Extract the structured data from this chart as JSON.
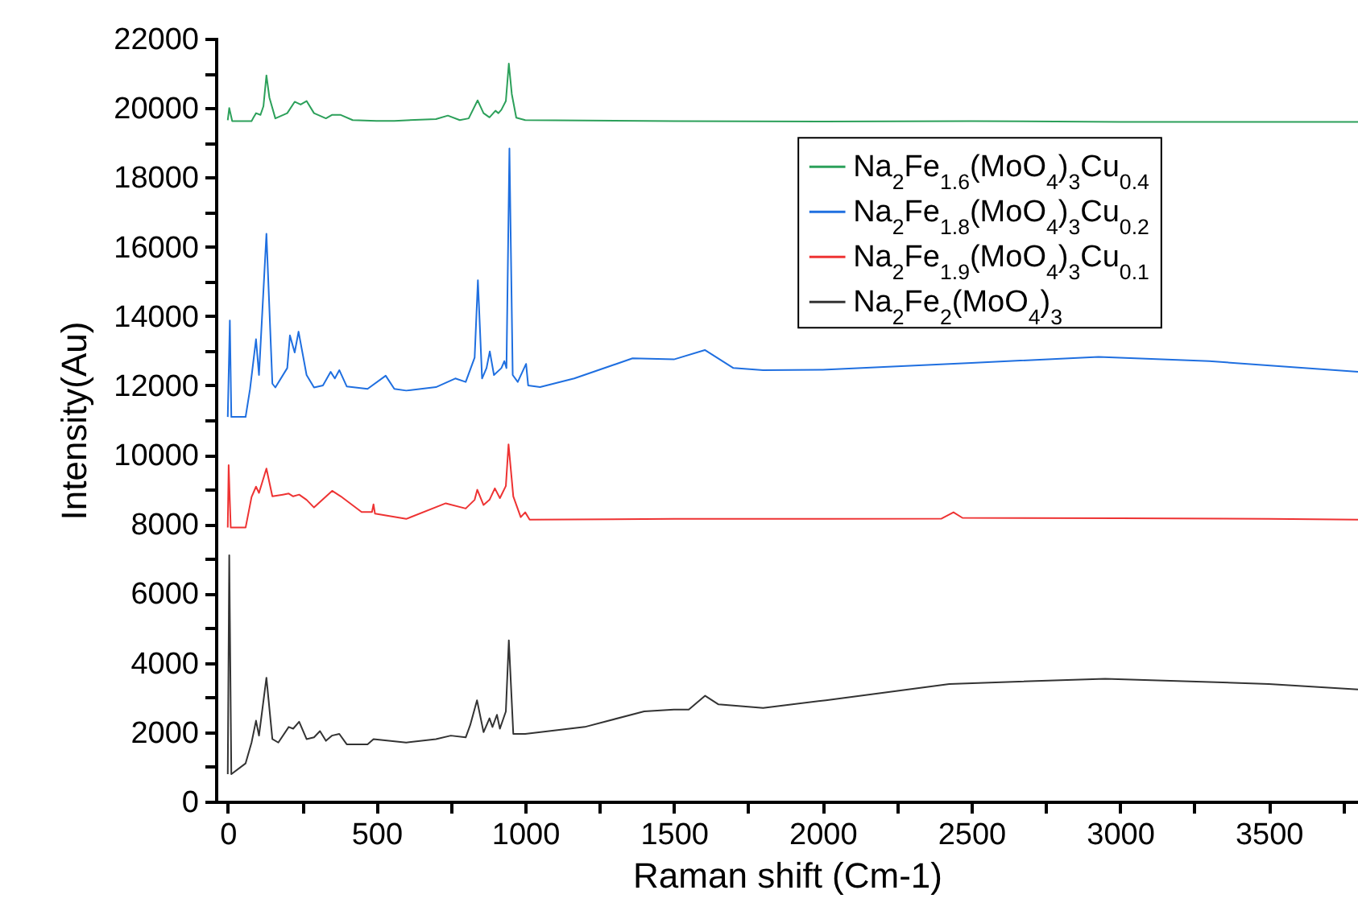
{
  "chart_data": {
    "type": "line",
    "xlabel": "Raman shift (Cm-1)",
    "ylabel": "Intensity(Au)",
    "legend": "top right",
    "xlim": [
      -40,
      3800
    ],
    "ylim": [
      0,
      22000
    ],
    "xticks": [
      0,
      {
        "value": 250,
        "label": null
      },
      500,
      {
        "value": 750,
        "label": null
      },
      1000,
      {
        "value": 1250,
        "label": null
      },
      1500,
      {
        "value": 1750,
        "label": null
      },
      2000,
      {
        "value": 2250,
        "label": null
      },
      2500,
      {
        "value": 2750,
        "label": null
      },
      3000,
      {
        "value": 3250,
        "label": null
      },
      3500,
      {
        "value": 3750,
        "label": null
      }
    ],
    "yticks": [
      0,
      {
        "value": 1000,
        "label": null
      },
      2000,
      {
        "value": 3000,
        "label": null
      },
      4000,
      {
        "value": 5000,
        "label": null
      },
      6000,
      {
        "value": 7000,
        "label": null
      },
      8000,
      {
        "value": 9000,
        "label": null
      },
      10000,
      {
        "value": 11000,
        "label": null
      },
      12000,
      {
        "value": 13000,
        "label": null
      },
      14000,
      {
        "value": 15000,
        "label": null
      },
      16000,
      {
        "value": 17000,
        "label": null
      },
      18000,
      {
        "value": 19000,
        "label": null
      },
      20000,
      {
        "value": 21000,
        "label": null
      },
      22000
    ],
    "series": [
      {
        "name": "Na$_{2}$Fe$_{1.6}$(MoO$_{4}$)$_{3}$Cu$_{0.4}$",
        "color": "#2ca05a",
        "x": [
          0,
          5,
          15,
          80,
          85,
          95,
          110,
          120,
          130,
          140,
          160,
          200,
          225,
          245,
          265,
          290,
          330,
          350,
          380,
          420,
          500,
          560,
          700,
          740,
          780,
          810,
          840,
          860,
          880,
          900,
          910,
          920,
          935,
          945,
          955,
          970,
          1000,
          1500,
          2000,
          2500,
          3000,
          3500,
          3800
        ],
        "values": [
          19650,
          20000,
          19620,
          19620,
          19700,
          19850,
          19800,
          20050,
          20940,
          20300,
          19700,
          19850,
          20180,
          20100,
          20200,
          19850,
          19700,
          19800,
          19800,
          19650,
          19630,
          19630,
          19680,
          19780,
          19650,
          19700,
          20220,
          19850,
          19730,
          19920,
          19850,
          19950,
          20200,
          21280,
          20400,
          19720,
          19650,
          19620,
          19610,
          19620,
          19600,
          19600,
          19600
        ]
      },
      {
        "name": "Na$_{2}$Fe$_{1.8}$(MoO$_{4}$)$_{3}$Cu$_{0.2}$",
        "color": "#1f6fe0",
        "x": [
          0,
          7,
          12,
          60,
          75,
          95,
          105,
          130,
          150,
          160,
          200,
          209,
          225,
          238,
          265,
          290,
          320,
          346,
          360,
          375,
          400,
          470,
          531,
          560,
          600,
          700,
          765,
          800,
          830,
          841,
          855,
          870,
          881,
          895,
          920,
          930,
          937,
          947,
          958,
          975,
          1003,
          1010,
          1050,
          1165,
          1361,
          1500,
          1604,
          1700,
          1800,
          2000,
          2500,
          2928,
          3300,
          3800
        ],
        "values": [
          11090,
          13870,
          11090,
          11090,
          11900,
          13330,
          12300,
          16370,
          12050,
          11940,
          12500,
          13440,
          12950,
          13550,
          12300,
          11940,
          12000,
          12390,
          12200,
          12440,
          11970,
          11900,
          12280,
          11900,
          11850,
          11950,
          12200,
          12100,
          12800,
          15030,
          12200,
          12500,
          12980,
          12300,
          12500,
          12700,
          12500,
          18830,
          12300,
          12100,
          12620,
          12000,
          11950,
          12200,
          12780,
          12750,
          13020,
          12500,
          12440,
          12450,
          12650,
          12820,
          12700,
          12390
        ]
      },
      {
        "name": "Na$_{2}$Fe$_{1.9}$(MoO$_{4}$)$_{3}$Cu$_{0.1}$",
        "color": "#ee3333",
        "x": [
          0,
          3,
          10,
          60,
          80,
          95,
          105,
          130,
          150,
          185,
          205,
          220,
          240,
          265,
          290,
          351,
          380,
          450,
          485,
          490,
          495,
          600,
          733,
          800,
          830,
          839,
          860,
          880,
          898,
          915,
          935,
          944,
          960,
          985,
          1000,
          1015,
          1500,
          2000,
          2400,
          2440,
          2470,
          3000,
          3500,
          3800
        ],
        "values": [
          7900,
          9700,
          7900,
          7900,
          8780,
          9080,
          8900,
          9600,
          8800,
          8850,
          8880,
          8800,
          8850,
          8700,
          8480,
          8960,
          8800,
          8350,
          8350,
          8570,
          8300,
          8150,
          8600,
          8450,
          8700,
          8990,
          8550,
          8700,
          9030,
          8750,
          9100,
          10300,
          8800,
          8200,
          8340,
          8130,
          8150,
          8150,
          8160,
          8340,
          8180,
          8170,
          8150,
          8130
        ]
      },
      {
        "name": "Na$_{2}$Fe$_{2}$(MoO$_{4}$)$_{3}$",
        "color": "#333333",
        "x": [
          0,
          5,
          12,
          60,
          80,
          95,
          105,
          130,
          150,
          170,
          205,
          220,
          240,
          265,
          290,
          310,
          330,
          350,
          375,
          400,
          470,
          490,
          600,
          700,
          750,
          800,
          815,
          838,
          860,
          880,
          890,
          905,
          915,
          935,
          945,
          960,
          1000,
          1200,
          1400,
          1500,
          1550,
          1605,
          1650,
          1800,
          2011,
          2426,
          2950,
          3500,
          3800
        ],
        "values": [
          790,
          7100,
          790,
          1100,
          1700,
          2330,
          1900,
          3570,
          1800,
          1700,
          2150,
          2100,
          2300,
          1800,
          1850,
          2030,
          1750,
          1900,
          1950,
          1650,
          1650,
          1800,
          1700,
          1800,
          1900,
          1850,
          2200,
          2920,
          2000,
          2400,
          2150,
          2500,
          2100,
          2600,
          4650,
          1950,
          1950,
          2150,
          2600,
          2650,
          2650,
          3050,
          2800,
          2700,
          2920,
          3390,
          3540,
          3390,
          3230
        ]
      }
    ]
  }
}
